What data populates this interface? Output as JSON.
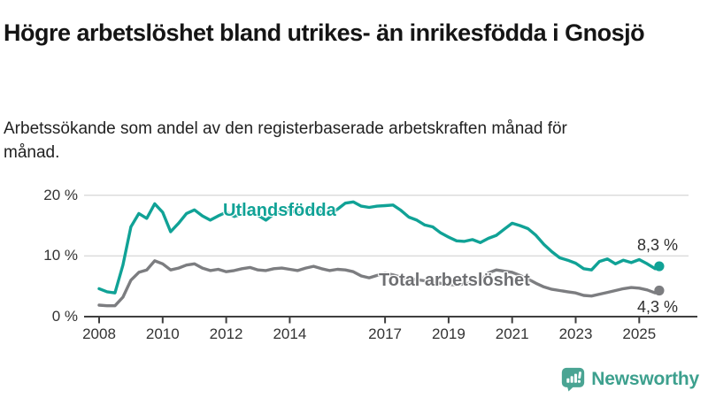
{
  "header": {
    "title": "Högre arbetslöshet bland utrikes- än inrikesfödda i Gnosjö",
    "subtitle": "Arbetssökande som andel av den registerbaserade arbetskraften månad för månad."
  },
  "colors": {
    "foreign_born_line": "#10a296",
    "total_line": "#7c7d80",
    "axis": "#3f3f3f",
    "grid": "#dcdcdc",
    "end_label_text": "#2e2e2e",
    "logo_teal": "#4aa493"
  },
  "chart_data": {
    "type": "line",
    "title": "Högre arbetslöshet bland utrikes- än inrikesfödda i Gnosjö",
    "unit": "%",
    "grid": "horizontal",
    "legend_position": "inline-labels",
    "x_range": [
      2008,
      2025.63
    ],
    "ylim": [
      0,
      22
    ],
    "y_axis": {
      "tick_values": [
        0,
        10,
        20
      ],
      "tick_labels": [
        "0 %",
        "10 %",
        "20 %"
      ]
    },
    "x_axis": {
      "tick_years": [
        2008,
        2010,
        2012,
        2014,
        2017,
        2019,
        2021,
        2023,
        2025
      ],
      "tick_labels": [
        "2008",
        "2010",
        "2012",
        "2014",
        "2017",
        "2019",
        "2021",
        "2023",
        "2025"
      ]
    },
    "x": [
      2008.0,
      2008.25,
      2008.5,
      2008.75,
      2009.0,
      2009.25,
      2009.5,
      2009.75,
      2010.0,
      2010.25,
      2010.5,
      2010.75,
      2011.0,
      2011.25,
      2011.5,
      2011.75,
      2012.0,
      2012.25,
      2012.5,
      2012.75,
      2013.0,
      2013.25,
      2013.5,
      2013.75,
      2014.0,
      2014.25,
      2014.5,
      2014.75,
      2015.0,
      2015.25,
      2015.5,
      2015.75,
      2016.0,
      2016.25,
      2016.5,
      2016.75,
      2017.0,
      2017.25,
      2017.5,
      2017.75,
      2018.0,
      2018.25,
      2018.5,
      2018.75,
      2019.0,
      2019.25,
      2019.5,
      2019.75,
      2020.0,
      2020.25,
      2020.5,
      2020.75,
      2021.0,
      2021.25,
      2021.5,
      2021.75,
      2022.0,
      2022.25,
      2022.5,
      2022.75,
      2023.0,
      2023.25,
      2023.5,
      2023.75,
      2024.0,
      2024.25,
      2024.5,
      2024.75,
      2025.0,
      2025.25,
      2025.5,
      2025.63
    ],
    "series": [
      {
        "name": "Utlandsfödda",
        "color": "#10a296",
        "end_label": "8,3 %",
        "latest_value": 8.3,
        "values": [
          4.6,
          4.1,
          3.9,
          8.5,
          14.8,
          17.0,
          16.2,
          18.6,
          17.2,
          14.0,
          15.4,
          17.0,
          17.6,
          16.6,
          15.9,
          16.6,
          17.2,
          16.5,
          16.9,
          17.4,
          16.7,
          15.9,
          16.9,
          17.3,
          17.6,
          17.0,
          17.4,
          17.9,
          17.2,
          16.9,
          17.7,
          18.7,
          18.9,
          18.2,
          18.0,
          18.2,
          18.3,
          18.4,
          17.5,
          16.4,
          15.9,
          15.1,
          14.8,
          13.8,
          13.1,
          12.5,
          12.4,
          12.7,
          12.2,
          12.9,
          13.4,
          14.4,
          15.4,
          15.0,
          14.5,
          13.4,
          11.9,
          10.7,
          9.7,
          9.3,
          8.8,
          7.9,
          7.7,
          9.1,
          9.5,
          8.7,
          9.3,
          8.9,
          9.4,
          8.7,
          7.9,
          8.3
        ]
      },
      {
        "name": "Total arbetslöshet",
        "color": "#7c7d80",
        "end_label": "4,3 %",
        "latest_value": 4.3,
        "values": [
          1.9,
          1.8,
          1.8,
          3.2,
          6.0,
          7.3,
          7.7,
          9.2,
          8.7,
          7.7,
          8.0,
          8.5,
          8.7,
          8.0,
          7.6,
          7.8,
          7.4,
          7.6,
          7.9,
          8.1,
          7.7,
          7.6,
          7.9,
          8.0,
          7.8,
          7.6,
          8.0,
          8.3,
          7.9,
          7.6,
          7.8,
          7.7,
          7.4,
          6.7,
          6.4,
          6.8,
          7.1,
          6.9,
          6.5,
          6.3,
          6.1,
          5.9,
          5.7,
          5.5,
          5.3,
          5.2,
          5.4,
          5.6,
          5.8,
          7.2,
          7.7,
          7.5,
          7.3,
          6.8,
          6.2,
          5.5,
          4.9,
          4.5,
          4.3,
          4.1,
          3.9,
          3.5,
          3.4,
          3.7,
          4.0,
          4.3,
          4.6,
          4.8,
          4.7,
          4.4,
          3.9,
          4.3
        ]
      }
    ]
  },
  "footer": {
    "brand": "Newsworthy"
  }
}
